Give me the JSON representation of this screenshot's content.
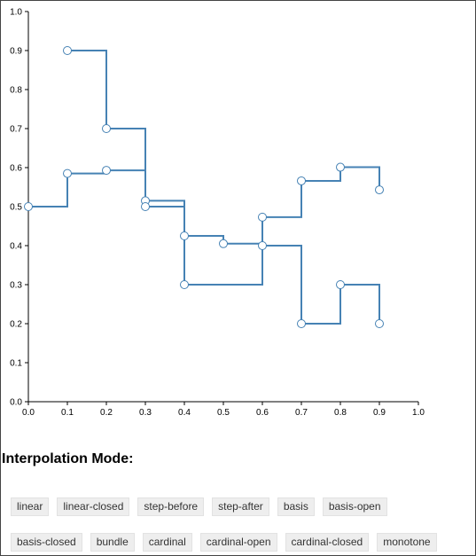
{
  "chart_data": {
    "type": "line",
    "interpolation": "step",
    "x_ticks": [
      "0.0",
      "0.1",
      "0.2",
      "0.3",
      "0.4",
      "0.5",
      "0.6",
      "0.7",
      "0.8",
      "0.9",
      "1.0"
    ],
    "y_ticks": [
      "0.0",
      "0.1",
      "0.2",
      "0.3",
      "0.4",
      "0.5",
      "0.6",
      "0.7",
      "0.8",
      "0.9",
      "1.0"
    ],
    "xlim": [
      0,
      1
    ],
    "ylim": [
      0,
      1
    ],
    "grid": false,
    "series": [
      {
        "x": [
          0.0,
          0.1,
          0.2,
          0.3,
          0.4,
          0.5,
          0.6,
          0.7,
          0.8,
          0.9
        ],
        "y": [
          0.5,
          0.585,
          0.593,
          0.515,
          0.425,
          0.405,
          0.473,
          0.566,
          0.601,
          0.543
        ]
      },
      {
        "x": [
          0.1,
          0.2,
          0.3,
          0.4,
          0.6,
          0.7,
          0.8,
          0.9
        ],
        "y": [
          0.9,
          0.7,
          0.5,
          0.3,
          0.4,
          0.2,
          0.3,
          0.2
        ]
      }
    ],
    "color": "#4682b4"
  },
  "controls": {
    "heading": "Interpolation Mode:",
    "modes": [
      "linear",
      "linear-closed",
      "step-before",
      "step-after",
      "basis",
      "basis-open",
      "basis-closed",
      "bundle",
      "cardinal",
      "cardinal-open",
      "cardinal-closed",
      "monotone"
    ]
  }
}
